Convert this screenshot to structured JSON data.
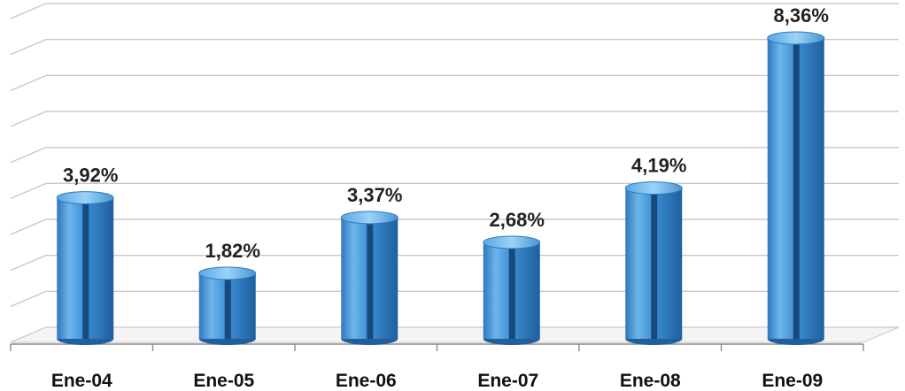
{
  "chart_data": {
    "type": "bar",
    "categories": [
      "Ene-04",
      "Ene-05",
      "Ene-06",
      "Ene-07",
      "Ene-08",
      "Ene-09"
    ],
    "values": [
      3.92,
      1.82,
      3.37,
      2.68,
      4.19,
      8.36
    ],
    "data_labels": [
      "3,92%",
      "1,82%",
      "3,37%",
      "2,68%",
      "4,19%",
      "8,36%"
    ],
    "title": "",
    "xlabel": "",
    "ylabel": "",
    "ylim": [
      0,
      9
    ],
    "grid": true,
    "legend": "none",
    "colors": {
      "bar": "#3a8fd6",
      "bar_light": "#7cc0f2",
      "bar_dark": "#1f5f9e",
      "bar_groove": "#123e6b",
      "grid": "#c8c8c8",
      "axis": "#8a8a8a"
    }
  }
}
